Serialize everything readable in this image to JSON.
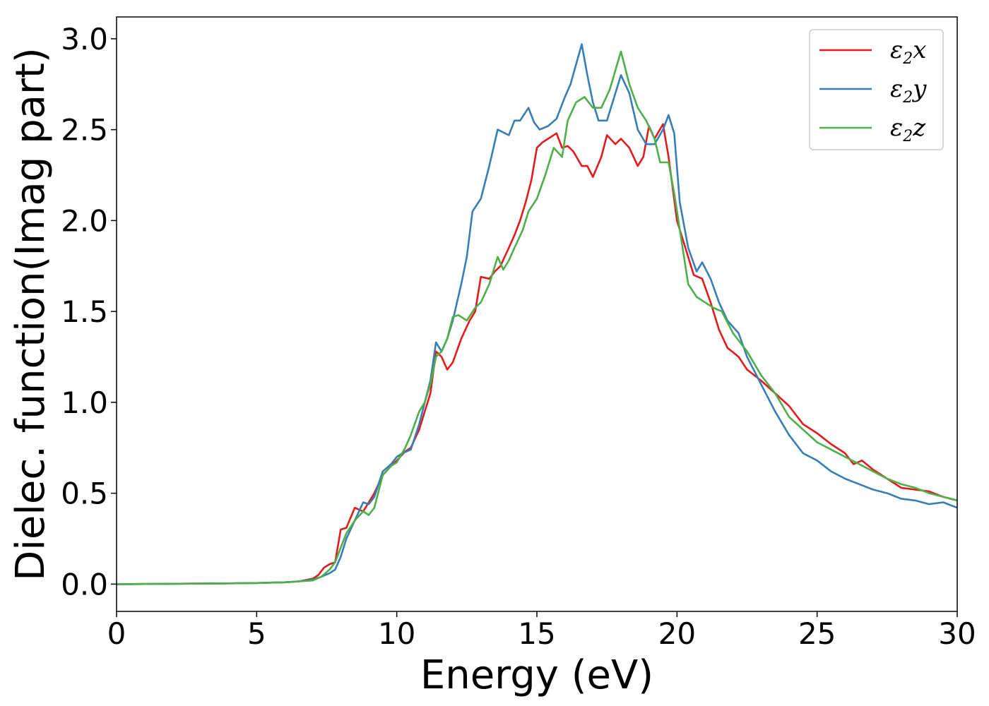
{
  "chart_data": {
    "type": "line",
    "title": "",
    "xlabel": "Energy (eV)",
    "ylabel": "Dielec. function(Imag part)",
    "xlim": [
      0,
      30
    ],
    "ylim": [
      -0.15,
      3.12
    ],
    "xticks": [
      0,
      5,
      10,
      15,
      20,
      25,
      30
    ],
    "xtick_labels": [
      "0",
      "5",
      "10",
      "15",
      "20",
      "25",
      "30"
    ],
    "yticks": [
      0.0,
      0.5,
      1.0,
      1.5,
      2.0,
      2.5,
      3.0
    ],
    "ytick_labels": [
      "0.0",
      "0.5",
      "1.0",
      "1.5",
      "2.0",
      "2.5",
      "3.0"
    ],
    "grid": false,
    "legend_position": "top-right",
    "series": [
      {
        "name": "ε2x",
        "legend_base": "ε",
        "legend_sub": "2",
        "legend_tail": "x",
        "color": "#e41a1c",
        "points": [
          [
            0,
            0
          ],
          [
            2,
            0.002
          ],
          [
            4,
            0.004
          ],
          [
            5,
            0.006
          ],
          [
            6,
            0.01
          ],
          [
            6.5,
            0.015
          ],
          [
            7,
            0.03
          ],
          [
            7.2,
            0.05
          ],
          [
            7.4,
            0.09
          ],
          [
            7.6,
            0.11
          ],
          [
            7.8,
            0.12
          ],
          [
            8.0,
            0.3
          ],
          [
            8.2,
            0.31
          ],
          [
            8.5,
            0.42
          ],
          [
            8.8,
            0.4
          ],
          [
            9.0,
            0.45
          ],
          [
            9.2,
            0.5
          ],
          [
            9.5,
            0.6
          ],
          [
            9.8,
            0.65
          ],
          [
            10,
            0.68
          ],
          [
            10.3,
            0.73
          ],
          [
            10.5,
            0.75
          ],
          [
            10.8,
            0.85
          ],
          [
            11,
            0.95
          ],
          [
            11.2,
            1.05
          ],
          [
            11.4,
            1.28
          ],
          [
            11.6,
            1.25
          ],
          [
            11.8,
            1.18
          ],
          [
            12,
            1.22
          ],
          [
            12.3,
            1.35
          ],
          [
            12.6,
            1.45
          ],
          [
            12.8,
            1.5
          ],
          [
            13,
            1.69
          ],
          [
            13.3,
            1.68
          ],
          [
            13.5,
            1.72
          ],
          [
            13.7,
            1.75
          ],
          [
            14,
            1.85
          ],
          [
            14.2,
            1.92
          ],
          [
            14.4,
            2.0
          ],
          [
            14.6,
            2.1
          ],
          [
            14.8,
            2.22
          ],
          [
            15,
            2.4
          ],
          [
            15.2,
            2.43
          ],
          [
            15.4,
            2.45
          ],
          [
            15.7,
            2.48
          ],
          [
            15.9,
            2.4
          ],
          [
            16.1,
            2.41
          ],
          [
            16.3,
            2.38
          ],
          [
            16.6,
            2.3
          ],
          [
            16.8,
            2.3
          ],
          [
            17,
            2.24
          ],
          [
            17.3,
            2.35
          ],
          [
            17.5,
            2.47
          ],
          [
            17.8,
            2.42
          ],
          [
            18,
            2.45
          ],
          [
            18.3,
            2.4
          ],
          [
            18.6,
            2.3
          ],
          [
            18.8,
            2.35
          ],
          [
            19,
            2.52
          ],
          [
            19.2,
            2.45
          ],
          [
            19.5,
            2.53
          ],
          [
            19.7,
            2.35
          ],
          [
            20,
            2.0
          ],
          [
            20.3,
            1.85
          ],
          [
            20.6,
            1.7
          ],
          [
            20.9,
            1.68
          ],
          [
            21.2,
            1.55
          ],
          [
            21.5,
            1.4
          ],
          [
            21.8,
            1.3
          ],
          [
            22.2,
            1.25
          ],
          [
            22.5,
            1.18
          ],
          [
            23,
            1.12
          ],
          [
            23.5,
            1.05
          ],
          [
            24,
            0.98
          ],
          [
            24.5,
            0.88
          ],
          [
            25,
            0.83
          ],
          [
            25.5,
            0.77
          ],
          [
            26,
            0.72
          ],
          [
            26.3,
            0.66
          ],
          [
            26.6,
            0.68
          ],
          [
            27,
            0.63
          ],
          [
            27.5,
            0.58
          ],
          [
            28,
            0.53
          ],
          [
            28.5,
            0.52
          ],
          [
            29,
            0.51
          ],
          [
            29.5,
            0.48
          ],
          [
            30,
            0.46
          ]
        ]
      },
      {
        "name": "ε2y",
        "legend_base": "ε",
        "legend_sub": "2",
        "legend_tail": "y",
        "color": "#377eb8",
        "points": [
          [
            0,
            0
          ],
          [
            2,
            0.002
          ],
          [
            4,
            0.004
          ],
          [
            5,
            0.006
          ],
          [
            6,
            0.01
          ],
          [
            6.5,
            0.015
          ],
          [
            7,
            0.025
          ],
          [
            7.3,
            0.04
          ],
          [
            7.6,
            0.06
          ],
          [
            7.8,
            0.08
          ],
          [
            8.0,
            0.15
          ],
          [
            8.2,
            0.25
          ],
          [
            8.5,
            0.35
          ],
          [
            8.8,
            0.45
          ],
          [
            9.0,
            0.44
          ],
          [
            9.2,
            0.48
          ],
          [
            9.5,
            0.62
          ],
          [
            9.8,
            0.66
          ],
          [
            10,
            0.7
          ],
          [
            10.2,
            0.72
          ],
          [
            10.5,
            0.74
          ],
          [
            10.8,
            0.88
          ],
          [
            11,
            1.0
          ],
          [
            11.2,
            1.12
          ],
          [
            11.4,
            1.33
          ],
          [
            11.6,
            1.28
          ],
          [
            11.8,
            1.35
          ],
          [
            12,
            1.45
          ],
          [
            12.3,
            1.65
          ],
          [
            12.5,
            1.8
          ],
          [
            12.7,
            2.05
          ],
          [
            13,
            2.12
          ],
          [
            13.3,
            2.3
          ],
          [
            13.6,
            2.5
          ],
          [
            14,
            2.47
          ],
          [
            14.2,
            2.55
          ],
          [
            14.4,
            2.55
          ],
          [
            14.7,
            2.62
          ],
          [
            14.9,
            2.54
          ],
          [
            15.1,
            2.5
          ],
          [
            15.4,
            2.52
          ],
          [
            15.7,
            2.56
          ],
          [
            16,
            2.68
          ],
          [
            16.2,
            2.75
          ],
          [
            16.6,
            2.97
          ],
          [
            16.8,
            2.8
          ],
          [
            17,
            2.65
          ],
          [
            17.2,
            2.55
          ],
          [
            17.5,
            2.55
          ],
          [
            17.8,
            2.7
          ],
          [
            18,
            2.8
          ],
          [
            18.3,
            2.7
          ],
          [
            18.6,
            2.5
          ],
          [
            18.9,
            2.42
          ],
          [
            19.2,
            2.42
          ],
          [
            19.5,
            2.5
          ],
          [
            19.7,
            2.58
          ],
          [
            19.9,
            2.48
          ],
          [
            20.1,
            2.1
          ],
          [
            20.4,
            1.85
          ],
          [
            20.7,
            1.72
          ],
          [
            20.9,
            1.77
          ],
          [
            21.2,
            1.68
          ],
          [
            21.5,
            1.55
          ],
          [
            21.8,
            1.45
          ],
          [
            22.2,
            1.38
          ],
          [
            22.5,
            1.25
          ],
          [
            23,
            1.1
          ],
          [
            23.5,
            0.95
          ],
          [
            24,
            0.82
          ],
          [
            24.5,
            0.72
          ],
          [
            25,
            0.68
          ],
          [
            25.5,
            0.62
          ],
          [
            26,
            0.58
          ],
          [
            26.5,
            0.55
          ],
          [
            27,
            0.52
          ],
          [
            27.5,
            0.5
          ],
          [
            28,
            0.47
          ],
          [
            28.5,
            0.46
          ],
          [
            29,
            0.44
          ],
          [
            29.5,
            0.45
          ],
          [
            30,
            0.42
          ]
        ]
      },
      {
        "name": "ε2z",
        "legend_base": "ε",
        "legend_sub": "2",
        "legend_tail": "z",
        "color": "#4daf4a",
        "points": [
          [
            0,
            0
          ],
          [
            2,
            0.002
          ],
          [
            4,
            0.004
          ],
          [
            5,
            0.006
          ],
          [
            6,
            0.01
          ],
          [
            6.5,
            0.015
          ],
          [
            7,
            0.02
          ],
          [
            7.3,
            0.04
          ],
          [
            7.6,
            0.08
          ],
          [
            7.8,
            0.12
          ],
          [
            8.0,
            0.2
          ],
          [
            8.2,
            0.28
          ],
          [
            8.5,
            0.35
          ],
          [
            8.8,
            0.4
          ],
          [
            9.0,
            0.38
          ],
          [
            9.2,
            0.42
          ],
          [
            9.5,
            0.6
          ],
          [
            9.8,
            0.65
          ],
          [
            10,
            0.67
          ],
          [
            10.3,
            0.75
          ],
          [
            10.5,
            0.82
          ],
          [
            10.8,
            0.95
          ],
          [
            11,
            1.0
          ],
          [
            11.2,
            1.1
          ],
          [
            11.4,
            1.25
          ],
          [
            11.6,
            1.28
          ],
          [
            11.8,
            1.35
          ],
          [
            12,
            1.47
          ],
          [
            12.2,
            1.48
          ],
          [
            12.5,
            1.45
          ],
          [
            12.8,
            1.52
          ],
          [
            13,
            1.55
          ],
          [
            13.3,
            1.65
          ],
          [
            13.6,
            1.8
          ],
          [
            13.8,
            1.73
          ],
          [
            14,
            1.78
          ],
          [
            14.2,
            1.85
          ],
          [
            14.5,
            1.95
          ],
          [
            14.7,
            2.05
          ],
          [
            15,
            2.12
          ],
          [
            15.3,
            2.25
          ],
          [
            15.6,
            2.4
          ],
          [
            15.9,
            2.35
          ],
          [
            16.1,
            2.55
          ],
          [
            16.4,
            2.65
          ],
          [
            16.7,
            2.68
          ],
          [
            17,
            2.62
          ],
          [
            17.3,
            2.62
          ],
          [
            17.6,
            2.72
          ],
          [
            18,
            2.93
          ],
          [
            18.3,
            2.75
          ],
          [
            18.6,
            2.62
          ],
          [
            18.9,
            2.55
          ],
          [
            19.2,
            2.45
          ],
          [
            19.4,
            2.32
          ],
          [
            19.7,
            2.32
          ],
          [
            19.9,
            2.15
          ],
          [
            20.1,
            1.95
          ],
          [
            20.4,
            1.65
          ],
          [
            20.7,
            1.58
          ],
          [
            21,
            1.55
          ],
          [
            21.3,
            1.52
          ],
          [
            21.6,
            1.5
          ],
          [
            22,
            1.38
          ],
          [
            22.5,
            1.28
          ],
          [
            23,
            1.15
          ],
          [
            23.5,
            1.05
          ],
          [
            24,
            0.92
          ],
          [
            24.5,
            0.85
          ],
          [
            25,
            0.78
          ],
          [
            25.5,
            0.74
          ],
          [
            26,
            0.7
          ],
          [
            26.5,
            0.66
          ],
          [
            27,
            0.62
          ],
          [
            27.5,
            0.58
          ],
          [
            28,
            0.55
          ],
          [
            28.5,
            0.53
          ],
          [
            29,
            0.5
          ],
          [
            29.5,
            0.48
          ],
          [
            30,
            0.46
          ]
        ]
      }
    ]
  }
}
